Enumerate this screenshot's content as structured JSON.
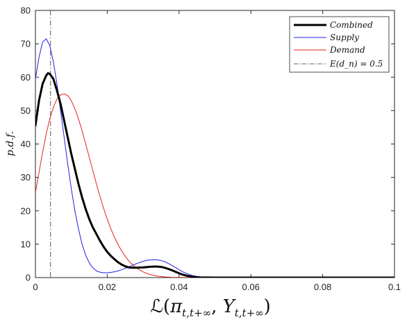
{
  "chart_data": {
    "type": "line",
    "xlabel": "ℒ(π_{t,t+∞}, Y_{t,t+∞})",
    "ylabel": "p.d.f.",
    "xlim": [
      0,
      0.1
    ],
    "ylim": [
      0,
      80
    ],
    "x_ticks": [
      0,
      0.02,
      0.04,
      0.06,
      0.08,
      0.1
    ],
    "x_tick_labels": [
      "0",
      "0.02",
      "0.04",
      "0.06",
      "0.08",
      "0.1"
    ],
    "y_ticks": [
      0,
      10,
      20,
      30,
      40,
      50,
      60,
      70,
      80
    ],
    "y_tick_labels": [
      "0",
      "10",
      "20",
      "30",
      "40",
      "50",
      "60",
      "70",
      "80"
    ],
    "grid": false,
    "legend_position": "top-right",
    "series": [
      {
        "name": "Combined",
        "color": "#000000",
        "width": 3,
        "points": [
          [
            0,
            45.5
          ],
          [
            0.001,
            53
          ],
          [
            0.002,
            58
          ],
          [
            0.003,
            60.5
          ],
          [
            0.0035,
            61.2
          ],
          [
            0.004,
            61
          ],
          [
            0.005,
            59.5
          ],
          [
            0.006,
            56
          ],
          [
            0.007,
            52
          ],
          [
            0.008,
            47
          ],
          [
            0.009,
            42
          ],
          [
            0.01,
            37
          ],
          [
            0.011,
            32.5
          ],
          [
            0.012,
            28
          ],
          [
            0.013,
            24
          ],
          [
            0.014,
            20.5
          ],
          [
            0.015,
            17.5
          ],
          [
            0.016,
            15
          ],
          [
            0.017,
            13
          ],
          [
            0.018,
            11
          ],
          [
            0.019,
            9.2
          ],
          [
            0.02,
            7.7
          ],
          [
            0.021,
            6.5
          ],
          [
            0.022,
            5.5
          ],
          [
            0.023,
            4.6
          ],
          [
            0.024,
            3.9
          ],
          [
            0.025,
            3.4
          ],
          [
            0.026,
            3.05
          ],
          [
            0.027,
            2.95
          ],
          [
            0.028,
            2.95
          ],
          [
            0.029,
            3.0
          ],
          [
            0.03,
            3.05
          ],
          [
            0.031,
            3.15
          ],
          [
            0.032,
            3.25
          ],
          [
            0.033,
            3.3
          ],
          [
            0.034,
            3.3
          ],
          [
            0.035,
            3.2
          ],
          [
            0.036,
            2.95
          ],
          [
            0.037,
            2.6
          ],
          [
            0.038,
            2.2
          ],
          [
            0.039,
            1.75
          ],
          [
            0.04,
            1.3
          ],
          [
            0.041,
            0.9
          ],
          [
            0.042,
            0.6
          ],
          [
            0.043,
            0.38
          ],
          [
            0.044,
            0.22
          ],
          [
            0.045,
            0.12
          ],
          [
            0.046,
            0.06
          ],
          [
            0.048,
            0.02
          ],
          [
            0.05,
            0.01
          ],
          [
            0.06,
            0
          ],
          [
            0.08,
            0
          ],
          [
            0.1,
            0
          ]
        ]
      },
      {
        "name": "Supply",
        "color": "#1f1fe6",
        "width": 1,
        "points": [
          [
            0,
            59.5
          ],
          [
            0.001,
            66
          ],
          [
            0.002,
            70.5
          ],
          [
            0.003,
            71.5
          ],
          [
            0.004,
            69.5
          ],
          [
            0.005,
            64.5
          ],
          [
            0.006,
            58
          ],
          [
            0.007,
            50
          ],
          [
            0.008,
            42
          ],
          [
            0.009,
            34
          ],
          [
            0.01,
            26.5
          ],
          [
            0.011,
            20
          ],
          [
            0.012,
            14.5
          ],
          [
            0.013,
            10
          ],
          [
            0.014,
            6.7
          ],
          [
            0.015,
            4.4
          ],
          [
            0.016,
            2.9
          ],
          [
            0.017,
            2.0
          ],
          [
            0.018,
            1.6
          ],
          [
            0.019,
            1.45
          ],
          [
            0.02,
            1.45
          ],
          [
            0.021,
            1.55
          ],
          [
            0.022,
            1.75
          ],
          [
            0.023,
            2.0
          ],
          [
            0.024,
            2.35
          ],
          [
            0.025,
            2.75
          ],
          [
            0.026,
            3.2
          ],
          [
            0.027,
            3.65
          ],
          [
            0.028,
            4.1
          ],
          [
            0.029,
            4.5
          ],
          [
            0.03,
            4.85
          ],
          [
            0.031,
            5.15
          ],
          [
            0.032,
            5.3
          ],
          [
            0.033,
            5.35
          ],
          [
            0.034,
            5.3
          ],
          [
            0.035,
            5.1
          ],
          [
            0.036,
            4.75
          ],
          [
            0.037,
            4.25
          ],
          [
            0.038,
            3.65
          ],
          [
            0.039,
            3.0
          ],
          [
            0.04,
            2.35
          ],
          [
            0.041,
            1.75
          ],
          [
            0.042,
            1.25
          ],
          [
            0.043,
            0.85
          ],
          [
            0.044,
            0.55
          ],
          [
            0.045,
            0.33
          ],
          [
            0.046,
            0.19
          ],
          [
            0.047,
            0.1
          ],
          [
            0.048,
            0.05
          ],
          [
            0.05,
            0.01
          ],
          [
            0.06,
            0
          ],
          [
            0.08,
            0
          ],
          [
            0.1,
            0
          ]
        ]
      },
      {
        "name": "Demand",
        "color": "#e61f1f",
        "width": 1,
        "points": [
          [
            0,
            25.5
          ],
          [
            0.001,
            31.5
          ],
          [
            0.002,
            37.5
          ],
          [
            0.003,
            43
          ],
          [
            0.004,
            47.5
          ],
          [
            0.005,
            51
          ],
          [
            0.006,
            53.5
          ],
          [
            0.007,
            54.7
          ],
          [
            0.008,
            55
          ],
          [
            0.009,
            54.5
          ],
          [
            0.01,
            53
          ],
          [
            0.011,
            50.5
          ],
          [
            0.012,
            47.5
          ],
          [
            0.013,
            44
          ],
          [
            0.014,
            40
          ],
          [
            0.015,
            36
          ],
          [
            0.016,
            32
          ],
          [
            0.017,
            28
          ],
          [
            0.018,
            24.2
          ],
          [
            0.019,
            20.7
          ],
          [
            0.02,
            17.5
          ],
          [
            0.021,
            14.6
          ],
          [
            0.022,
            12.1
          ],
          [
            0.023,
            9.9
          ],
          [
            0.024,
            8.0
          ],
          [
            0.025,
            6.4
          ],
          [
            0.026,
            5.0
          ],
          [
            0.027,
            3.9
          ],
          [
            0.028,
            3.0
          ],
          [
            0.029,
            2.3
          ],
          [
            0.03,
            1.7
          ],
          [
            0.031,
            1.25
          ],
          [
            0.032,
            0.9
          ],
          [
            0.033,
            0.65
          ],
          [
            0.034,
            0.45
          ],
          [
            0.035,
            0.3
          ],
          [
            0.036,
            0.2
          ],
          [
            0.038,
            0.09
          ],
          [
            0.04,
            0.04
          ],
          [
            0.045,
            0.01
          ],
          [
            0.05,
            0
          ],
          [
            0.06,
            0
          ],
          [
            0.08,
            0
          ],
          [
            0.1,
            0
          ]
        ]
      },
      {
        "name": "E(d_n) = 0.5",
        "color": "#555555",
        "width": 1,
        "dash": "dashdot",
        "vertical_x": 0.0042
      }
    ]
  }
}
